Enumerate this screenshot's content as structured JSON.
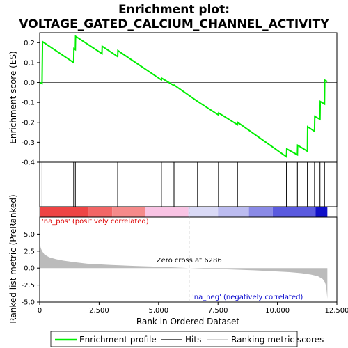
{
  "chart_data": {
    "type": "line",
    "title_lines": [
      "Enrichment plot:",
      "VOLTAGE_GATED_CALCIUM_CHANNEL_ACTIVITY"
    ],
    "top_panel": {
      "ylabel": "Enrichment score (ES)",
      "ylim": [
        -0.4,
        0.25
      ],
      "yticks": [
        -0.4,
        -0.3,
        -0.2,
        -0.1,
        0.0,
        0.1,
        0.2
      ],
      "ytick_labels": [
        "-0.4",
        "-0.3",
        "-0.2",
        "-0.1",
        "0.0",
        "0.1",
        "0.2"
      ],
      "series": [
        {
          "name": "Enrichment profile",
          "color": "#00ee00",
          "x": [
            0,
            100,
            120,
            1430,
            1440,
            1500,
            1510,
            2620,
            2630,
            3280,
            3290,
            5120,
            5130,
            5650,
            5660,
            6640,
            7520,
            7530,
            8320,
            8330,
            10380,
            10390,
            10840,
            10850,
            11260,
            11270,
            11560,
            11570,
            11790,
            11800,
            11980,
            11990,
            12100
          ],
          "y": [
            0.0,
            -0.005,
            0.205,
            0.1,
            0.17,
            0.165,
            0.232,
            0.145,
            0.182,
            0.13,
            0.16,
            0.013,
            0.022,
            -0.015,
            -0.013,
            -0.095,
            -0.163,
            -0.153,
            -0.212,
            -0.2,
            -0.373,
            -0.333,
            -0.363,
            -0.315,
            -0.345,
            -0.222,
            -0.245,
            -0.17,
            -0.185,
            -0.095,
            -0.108,
            0.012,
            0.005
          ]
        }
      ],
      "grid": false
    },
    "hits": {
      "name": "Hits",
      "color": "#000000",
      "positions": [
        100,
        1430,
        1500,
        2620,
        3280,
        5120,
        5650,
        6640,
        7520,
        8320,
        10380,
        10840,
        11260,
        11560,
        11790,
        11980
      ]
    },
    "color_bar": {
      "segments": [
        {
          "start": 0,
          "end": 2050,
          "color": "#ee4444"
        },
        {
          "start": 2050,
          "end": 3050,
          "color": "#f26666"
        },
        {
          "start": 3050,
          "end": 4450,
          "color": "#f58a8a"
        },
        {
          "start": 4450,
          "end": 6250,
          "color": "#f9c4e4"
        },
        {
          "start": 6250,
          "end": 7500,
          "color": "#dadaf6"
        },
        {
          "start": 7500,
          "end": 8800,
          "color": "#bcbcf0"
        },
        {
          "start": 8800,
          "end": 9800,
          "color": "#8a8ae6"
        },
        {
          "start": 9800,
          "end": 11600,
          "color": "#5a5ade"
        },
        {
          "start": 11600,
          "end": 12100,
          "color": "#1010c8"
        }
      ]
    },
    "bottom_panel": {
      "ylabel": "Ranked list metric (PreRanked)",
      "xlabel": "Rank in Ordered Dataset",
      "ylim": [
        -5.0,
        7.5
      ],
      "yticks": [
        -5.0,
        -2.5,
        0.0,
        2.5,
        5.0
      ],
      "ytick_labels": [
        "-5.0",
        "-2.5",
        "0.0",
        "2.5",
        "5.0"
      ],
      "series": [
        {
          "name": "Ranking metric scores",
          "color": "#bbbbbb",
          "x": [
            0,
            10,
            40,
            100,
            200,
            400,
            700,
            1000,
            1500,
            2000,
            3000,
            4000,
            5000,
            6000,
            6286,
            7000,
            8000,
            9000,
            10000,
            10500,
            11000,
            11400,
            11700,
            11900,
            12000,
            12050,
            12100
          ],
          "y": [
            4.2,
            3.6,
            3.0,
            2.5,
            2.0,
            1.6,
            1.3,
            1.1,
            0.85,
            0.65,
            0.45,
            0.32,
            0.2,
            0.05,
            0.0,
            -0.1,
            -0.2,
            -0.33,
            -0.5,
            -0.6,
            -0.75,
            -0.95,
            -1.2,
            -1.6,
            -2.1,
            -2.7,
            -4.5
          ]
        }
      ],
      "annotations": {
        "pos_label": "'na_pos' (positively correlated)",
        "neg_label": "'na_neg' (negatively correlated)",
        "zero_cross_label": "Zero cross at 6286",
        "zero_cross": 6286
      }
    },
    "xlim": [
      0,
      12500
    ],
    "xticks": [
      0,
      2500,
      5000,
      7500,
      10000,
      12500
    ],
    "xtick_labels": [
      "0",
      "2,500",
      "5,000",
      "7,500",
      "10,000",
      "12,500"
    ],
    "legend": {
      "placement": "bottom",
      "entries": [
        "Enrichment profile",
        "Hits",
        "Ranking metric scores"
      ]
    }
  }
}
